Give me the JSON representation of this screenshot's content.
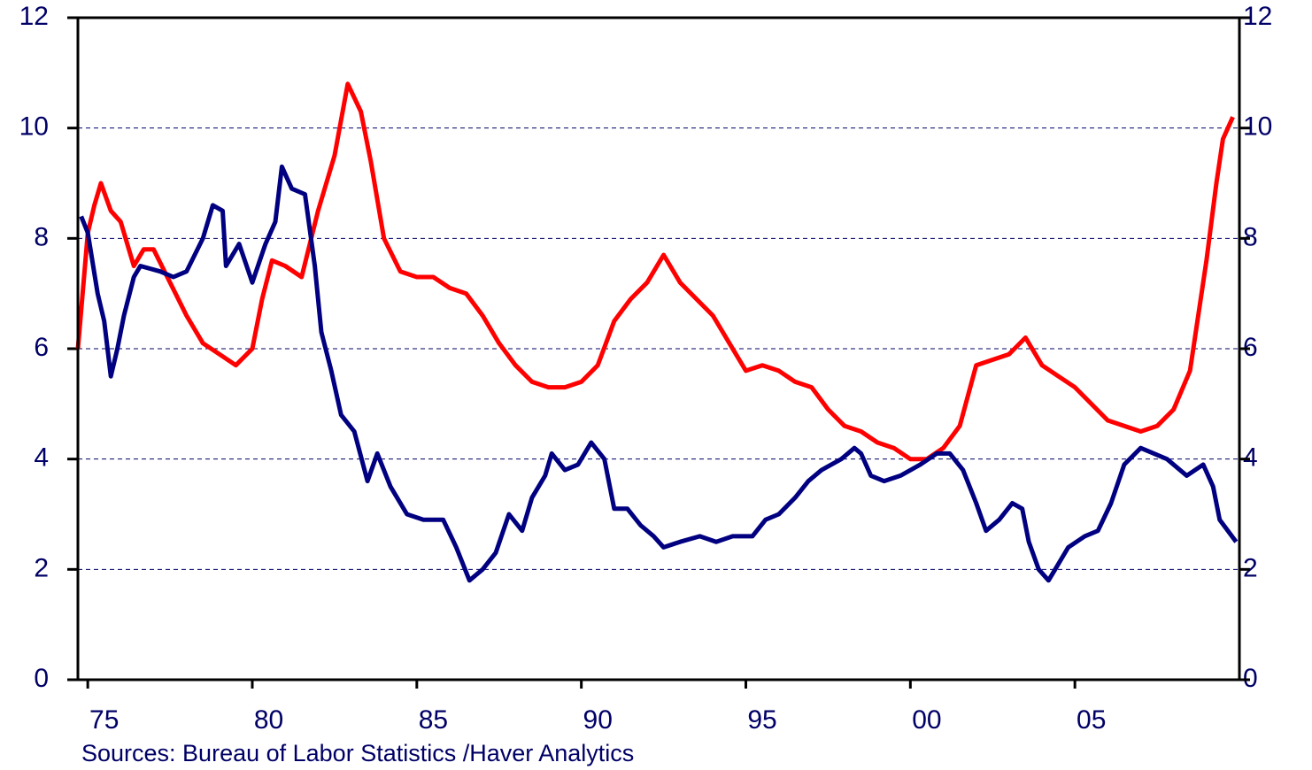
{
  "chart_data": {
    "type": "line",
    "note": "Sources:  Bureau of Labor Statistics /Haver Analytics",
    "xlim": [
      1974.7,
      2010.0
    ],
    "xticks": [
      {
        "value": 1975,
        "label": "75"
      },
      {
        "value": 1980,
        "label": "80"
      },
      {
        "value": 1985,
        "label": "85"
      },
      {
        "value": 1990,
        "label": "90"
      },
      {
        "value": 1995,
        "label": "95"
      },
      {
        "value": 2000,
        "label": "00"
      },
      {
        "value": 2005,
        "label": "05"
      }
    ],
    "ylim": [
      0,
      12
    ],
    "yticks": [
      0,
      2,
      4,
      6,
      8,
      10,
      12
    ],
    "y2lim": [
      0,
      12
    ],
    "y2ticks": [
      0,
      2,
      4,
      6,
      8,
      10,
      12
    ],
    "grid": true,
    "series": [
      {
        "color": "#ff0000",
        "x": [
          1974.7,
          1975.0,
          1975.2,
          1975.4,
          1975.7,
          1976.0,
          1976.4,
          1976.7,
          1977.0,
          1977.5,
          1978.0,
          1978.5,
          1979.0,
          1979.5,
          1980.0,
          1980.3,
          1980.6,
          1981.0,
          1981.5,
          1982.0,
          1982.5,
          1982.9,
          1983.3,
          1983.6,
          1984.0,
          1984.5,
          1985.0,
          1985.5,
          1986.0,
          1986.5,
          1987.0,
          1987.5,
          1988.0,
          1988.5,
          1989.0,
          1989.5,
          1990.0,
          1990.5,
          1991.0,
          1991.5,
          1992.0,
          1992.5,
          1993.0,
          1993.5,
          1994.0,
          1994.5,
          1995.0,
          1995.5,
          1996.0,
          1996.5,
          1997.0,
          1997.5,
          1998.0,
          1998.5,
          1999.0,
          1999.5,
          2000.0,
          2000.5,
          2001.0,
          2001.5,
          2002.0,
          2002.5,
          2003.0,
          2003.5,
          2004.0,
          2004.5,
          2005.0,
          2005.5,
          2006.0,
          2006.5,
          2007.0,
          2007.5,
          2008.0,
          2008.5,
          2009.0,
          2009.3,
          2009.5,
          2009.8
        ],
        "values": [
          6.0,
          8.1,
          8.6,
          9.0,
          8.5,
          8.3,
          7.5,
          7.8,
          7.8,
          7.2,
          6.6,
          6.1,
          5.9,
          5.7,
          6.0,
          6.9,
          7.6,
          7.5,
          7.3,
          8.5,
          9.5,
          10.8,
          10.3,
          9.4,
          8.0,
          7.4,
          7.3,
          7.3,
          7.1,
          7.0,
          6.6,
          6.1,
          5.7,
          5.4,
          5.3,
          5.3,
          5.4,
          5.7,
          6.5,
          6.9,
          7.2,
          7.7,
          7.2,
          6.9,
          6.6,
          6.1,
          5.6,
          5.7,
          5.6,
          5.4,
          5.3,
          4.9,
          4.6,
          4.5,
          4.3,
          4.2,
          4.0,
          4.0,
          4.2,
          4.6,
          5.7,
          5.8,
          5.9,
          6.2,
          5.7,
          5.5,
          5.3,
          5.0,
          4.7,
          4.6,
          4.5,
          4.6,
          4.9,
          5.6,
          7.6,
          9.0,
          9.8,
          10.2
        ]
      },
      {
        "color": "#000080",
        "x": [
          1974.8,
          1975.0,
          1975.3,
          1975.5,
          1975.7,
          1975.9,
          1976.1,
          1976.4,
          1976.6,
          1977.2,
          1977.6,
          1978.0,
          1978.5,
          1978.8,
          1979.1,
          1979.2,
          1979.6,
          1980.0,
          1980.4,
          1980.7,
          1980.9,
          1981.2,
          1981.6,
          1981.9,
          1982.1,
          1982.4,
          1982.7,
          1983.1,
          1983.5,
          1983.8,
          1984.2,
          1984.7,
          1985.2,
          1985.8,
          1986.2,
          1986.6,
          1987.0,
          1987.4,
          1987.8,
          1988.2,
          1988.5,
          1988.9,
          1989.1,
          1989.5,
          1989.9,
          1990.3,
          1990.7,
          1991.0,
          1991.4,
          1991.8,
          1992.2,
          1992.5,
          1993.0,
          1993.6,
          1994.1,
          1994.6,
          1995.2,
          1995.6,
          1996.0,
          1996.5,
          1996.9,
          1997.3,
          1997.9,
          1998.3,
          1998.5,
          1998.8,
          1999.2,
          1999.7,
          2000.3,
          2000.8,
          2001.2,
          2001.6,
          2002.0,
          2002.3,
          2002.7,
          2003.1,
          2003.4,
          2003.6,
          2003.9,
          2004.2,
          2004.4,
          2004.8,
          2005.3,
          2005.7,
          2006.1,
          2006.5,
          2007.0,
          2007.4,
          2007.8,
          2008.4,
          2008.9,
          2009.2,
          2009.4,
          2009.9
        ],
        "values": [
          8.4,
          8.1,
          7.0,
          6.5,
          5.5,
          6.0,
          6.6,
          7.3,
          7.5,
          7.4,
          7.3,
          7.4,
          8.0,
          8.6,
          8.5,
          7.5,
          7.9,
          7.2,
          7.9,
          8.3,
          9.3,
          8.9,
          8.8,
          7.5,
          6.3,
          5.6,
          4.8,
          4.5,
          3.6,
          4.1,
          3.5,
          3.0,
          2.9,
          2.9,
          2.4,
          1.8,
          2.0,
          2.3,
          3.0,
          2.7,
          3.3,
          3.7,
          4.1,
          3.8,
          3.9,
          4.3,
          4.0,
          3.1,
          3.1,
          2.8,
          2.6,
          2.4,
          2.5,
          2.6,
          2.5,
          2.6,
          2.6,
          2.9,
          3.0,
          3.3,
          3.6,
          3.8,
          4.0,
          4.2,
          4.1,
          3.7,
          3.6,
          3.7,
          3.9,
          4.1,
          4.1,
          3.8,
          3.2,
          2.7,
          2.9,
          3.2,
          3.1,
          2.5,
          2.0,
          1.8,
          2.0,
          2.4,
          2.6,
          2.7,
          3.2,
          3.9,
          4.2,
          4.1,
          4.0,
          3.7,
          3.9,
          3.5,
          2.9,
          2.5
        ]
      }
    ]
  }
}
